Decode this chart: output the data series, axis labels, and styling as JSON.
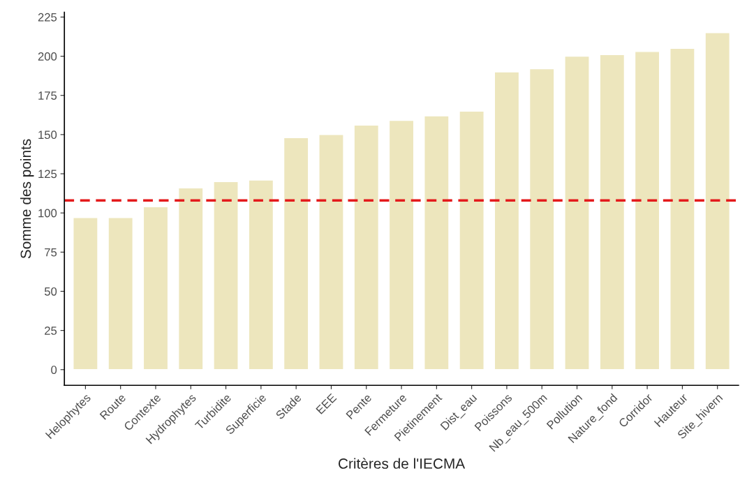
{
  "chart_data": {
    "type": "bar",
    "xlabel": "Critères de l'IECMA",
    "ylabel": "Somme des points",
    "categories": [
      "Helophytes",
      "Route",
      "Contexte",
      "Hydrophytes",
      "Turbidite",
      "Superficie",
      "Stade",
      "EEE",
      "Pente",
      "Fermeture",
      "Pietinement",
      "Dist_eau",
      "Poissons",
      "Nb_eau_500m",
      "Pollution",
      "Nature_fond",
      "Corridor",
      "Hauteur",
      "Site_hivern"
    ],
    "values": [
      97,
      97,
      104,
      116,
      120,
      121,
      148,
      150,
      156,
      159,
      162,
      165,
      190,
      192,
      200,
      201,
      203,
      205,
      215
    ],
    "color": "#ede6bd",
    "ylim": [
      -10,
      228
    ],
    "yticks": [
      0,
      25,
      50,
      75,
      100,
      125,
      150,
      175,
      200,
      225
    ],
    "ref_lines": [
      {
        "axis": "y",
        "value": 108,
        "color": "#e41a1c",
        "line_style": "dashed"
      }
    ],
    "grid": false
  }
}
